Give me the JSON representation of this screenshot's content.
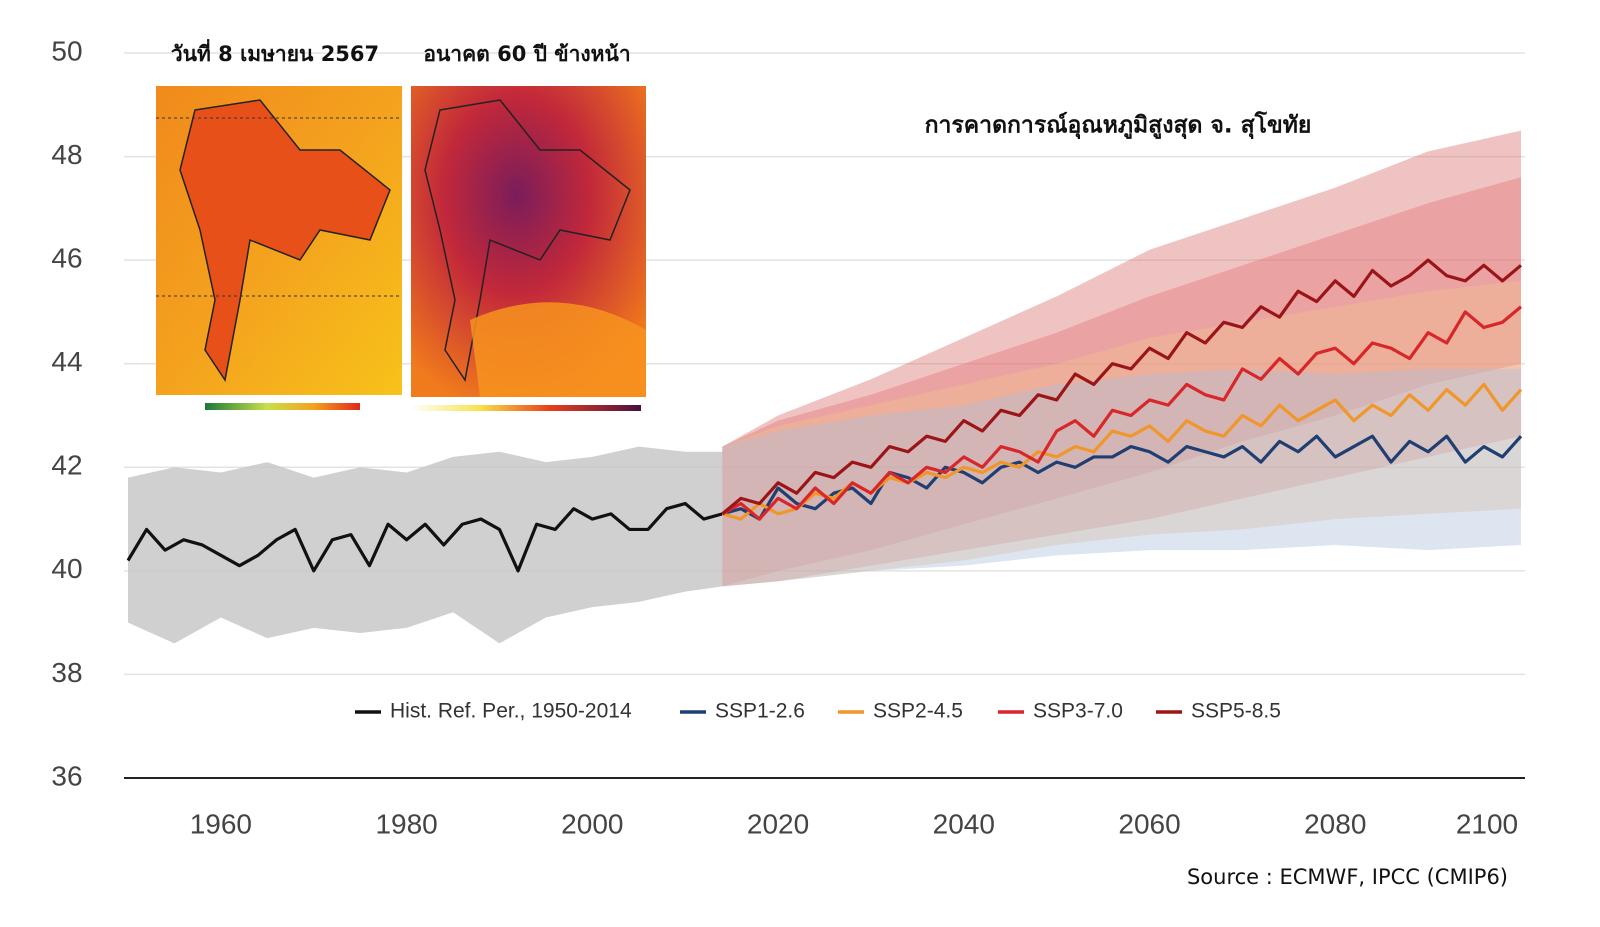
{
  "chart_data": {
    "type": "line",
    "title": "การคาดการณ์อุณหภูมิสูงสุด จ. สุโขทัย",
    "map_captions": [
      "วันที่ 8 เมษายน 2567",
      "อนาคต 60 ปี ข้างหน้า"
    ],
    "source": "Source : ECMWF, IPCC (CMIP6)",
    "xlim": [
      1950,
      2100
    ],
    "xticks": [
      1960,
      1980,
      2000,
      2020,
      2040,
      2060,
      2080,
      2100
    ],
    "ylim": [
      36,
      50
    ],
    "yticks": [
      36,
      38,
      40,
      42,
      44,
      46,
      48,
      50
    ],
    "grid": true,
    "series": [
      {
        "name": "Hist. Ref. Per., 1950-2014",
        "color": "#111111",
        "x": [
          1950,
          1952,
          1954,
          1956,
          1958,
          1960,
          1962,
          1964,
          1966,
          1968,
          1970,
          1972,
          1974,
          1976,
          1978,
          1980,
          1982,
          1984,
          1986,
          1988,
          1990,
          1992,
          1994,
          1996,
          1998,
          2000,
          2002,
          2004,
          2006,
          2008,
          2010,
          2012,
          2014
        ],
        "values": [
          40.2,
          40.8,
          40.4,
          40.6,
          40.5,
          40.3,
          40.1,
          40.3,
          40.6,
          40.8,
          40.0,
          40.6,
          40.7,
          40.1,
          40.9,
          40.6,
          40.9,
          40.5,
          40.9,
          41.0,
          40.8,
          40.0,
          40.9,
          40.8,
          41.2,
          41.0,
          41.1,
          40.8,
          40.8,
          41.2,
          41.3,
          41.0,
          41.1
        ]
      },
      {
        "name": "SSP1-2.6",
        "color": "#1f3f73",
        "x": [
          2014,
          2016,
          2018,
          2020,
          2022,
          2024,
          2026,
          2028,
          2030,
          2032,
          2034,
          2036,
          2038,
          2040,
          2042,
          2044,
          2046,
          2048,
          2050,
          2052,
          2054,
          2056,
          2058,
          2060,
          2062,
          2064,
          2066,
          2068,
          2070,
          2072,
          2074,
          2076,
          2078,
          2080,
          2082,
          2084,
          2086,
          2088,
          2090,
          2092,
          2094,
          2096,
          2098,
          2100
        ],
        "values": [
          41.1,
          41.2,
          41.0,
          41.6,
          41.3,
          41.2,
          41.5,
          41.6,
          41.3,
          41.9,
          41.8,
          41.6,
          42.0,
          41.9,
          41.7,
          42.0,
          42.1,
          41.9,
          42.1,
          42.0,
          42.2,
          42.2,
          42.4,
          42.3,
          42.1,
          42.4,
          42.3,
          42.2,
          42.4,
          42.1,
          42.5,
          42.3,
          42.6,
          42.2,
          42.4,
          42.6,
          42.1,
          42.5,
          42.3,
          42.6,
          42.1,
          42.4,
          42.2,
          42.6
        ]
      },
      {
        "name": "SSP2-4.5",
        "color": "#f0962a",
        "x": [
          2014,
          2016,
          2018,
          2020,
          2022,
          2024,
          2026,
          2028,
          2030,
          2032,
          2034,
          2036,
          2038,
          2040,
          2042,
          2044,
          2046,
          2048,
          2050,
          2052,
          2054,
          2056,
          2058,
          2060,
          2062,
          2064,
          2066,
          2068,
          2070,
          2072,
          2074,
          2076,
          2078,
          2080,
          2082,
          2084,
          2086,
          2088,
          2090,
          2092,
          2094,
          2096,
          2098,
          2100
        ],
        "values": [
          41.1,
          41.0,
          41.3,
          41.1,
          41.2,
          41.5,
          41.4,
          41.7,
          41.5,
          41.8,
          41.7,
          41.9,
          41.8,
          42.0,
          41.9,
          42.1,
          42.0,
          42.3,
          42.2,
          42.4,
          42.3,
          42.7,
          42.6,
          42.8,
          42.5,
          42.9,
          42.7,
          42.6,
          43.0,
          42.8,
          43.2,
          42.9,
          43.1,
          43.3,
          42.9,
          43.2,
          43.0,
          43.4,
          43.1,
          43.5,
          43.2,
          43.6,
          43.1,
          43.5
        ]
      },
      {
        "name": "SSP3-7.0",
        "color": "#d8262a",
        "x": [
          2014,
          2016,
          2018,
          2020,
          2022,
          2024,
          2026,
          2028,
          2030,
          2032,
          2034,
          2036,
          2038,
          2040,
          2042,
          2044,
          2046,
          2048,
          2050,
          2052,
          2054,
          2056,
          2058,
          2060,
          2062,
          2064,
          2066,
          2068,
          2070,
          2072,
          2074,
          2076,
          2078,
          2080,
          2082,
          2084,
          2086,
          2088,
          2090,
          2092,
          2094,
          2096,
          2098,
          2100
        ],
        "values": [
          41.1,
          41.3,
          41.0,
          41.4,
          41.2,
          41.6,
          41.3,
          41.7,
          41.5,
          41.9,
          41.7,
          42.0,
          41.9,
          42.2,
          42.0,
          42.4,
          42.3,
          42.1,
          42.7,
          42.9,
          42.6,
          43.1,
          43.0,
          43.3,
          43.2,
          43.6,
          43.4,
          43.3,
          43.9,
          43.7,
          44.1,
          43.8,
          44.2,
          44.3,
          44.0,
          44.4,
          44.3,
          44.1,
          44.6,
          44.4,
          45.0,
          44.7,
          44.8,
          45.1
        ]
      },
      {
        "name": "SSP5-8.5",
        "color": "#9b1518",
        "x": [
          2014,
          2016,
          2018,
          2020,
          2022,
          2024,
          2026,
          2028,
          2030,
          2032,
          2034,
          2036,
          2038,
          2040,
          2042,
          2044,
          2046,
          2048,
          2050,
          2052,
          2054,
          2056,
          2058,
          2060,
          2062,
          2064,
          2066,
          2068,
          2070,
          2072,
          2074,
          2076,
          2078,
          2080,
          2082,
          2084,
          2086,
          2088,
          2090,
          2092,
          2094,
          2096,
          2098,
          2100
        ],
        "values": [
          41.1,
          41.4,
          41.3,
          41.7,
          41.5,
          41.9,
          41.8,
          42.1,
          42.0,
          42.4,
          42.3,
          42.6,
          42.5,
          42.9,
          42.7,
          43.1,
          43.0,
          43.4,
          43.3,
          43.8,
          43.6,
          44.0,
          43.9,
          44.3,
          44.1,
          44.6,
          44.4,
          44.8,
          44.7,
          45.1,
          44.9,
          45.4,
          45.2,
          45.6,
          45.3,
          45.8,
          45.5,
          45.7,
          46.0,
          45.7,
          45.6,
          45.9,
          45.6,
          45.9
        ]
      }
    ],
    "bands": [
      {
        "color": "#c4c4c4",
        "x": [
          1950,
          1955,
          1960,
          1965,
          1970,
          1975,
          1980,
          1985,
          1990,
          1995,
          2000,
          2005,
          2010,
          2014
        ],
        "low": [
          39.0,
          38.6,
          39.1,
          38.7,
          38.9,
          38.8,
          38.9,
          39.2,
          38.6,
          39.1,
          39.3,
          39.4,
          39.6,
          39.7
        ],
        "high": [
          41.8,
          42.0,
          41.9,
          42.1,
          41.8,
          42.0,
          41.9,
          42.2,
          42.3,
          42.1,
          42.2,
          42.4,
          42.3,
          42.3
        ]
      },
      {
        "color": "#d96a6a",
        "x": [
          2014,
          2020,
          2030,
          2040,
          2050,
          2060,
          2070,
          2080,
          2090,
          2100
        ],
        "low": [
          39.7,
          40.0,
          40.4,
          40.9,
          41.4,
          41.9,
          42.5,
          43.0,
          43.6,
          44.0
        ],
        "high": [
          42.4,
          43.0,
          43.7,
          44.5,
          45.3,
          46.2,
          46.8,
          47.4,
          48.1,
          48.5
        ]
      },
      {
        "color": "#e07070",
        "x": [
          2014,
          2020,
          2030,
          2040,
          2050,
          2060,
          2070,
          2080,
          2090,
          2100
        ],
        "low": [
          39.7,
          39.8,
          40.1,
          40.4,
          40.7,
          41.0,
          41.4,
          41.8,
          42.2,
          42.6
        ],
        "high": [
          42.4,
          42.9,
          43.4,
          44.0,
          44.6,
          45.3,
          45.9,
          46.5,
          47.1,
          47.6
        ]
      },
      {
        "color": "#f2c28c",
        "x": [
          2014,
          2020,
          2030,
          2040,
          2050,
          2060,
          2070,
          2080,
          2090,
          2100
        ],
        "low": [
          39.7,
          39.8,
          40.0,
          40.2,
          40.5,
          40.7,
          40.8,
          41.0,
          41.1,
          41.2
        ],
        "high": [
          42.4,
          42.8,
          43.2,
          43.6,
          44.0,
          44.5,
          44.8,
          45.1,
          45.4,
          45.6
        ]
      },
      {
        "color": "#a9bedb",
        "x": [
          2014,
          2020,
          2030,
          2040,
          2050,
          2060,
          2070,
          2080,
          2090,
          2100
        ],
        "low": [
          39.7,
          39.8,
          40.0,
          40.1,
          40.3,
          40.4,
          40.4,
          40.5,
          40.4,
          40.5
        ],
        "high": [
          42.4,
          42.7,
          43.0,
          43.2,
          43.6,
          43.8,
          43.9,
          43.8,
          43.9,
          43.9
        ]
      }
    ]
  }
}
